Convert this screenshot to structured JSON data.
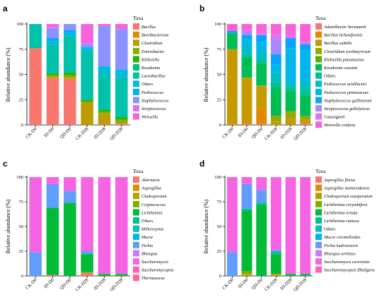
{
  "chart_data": [
    {
      "type": "bar",
      "panel": "a",
      "xlabel": "",
      "ylabel": "Relative abundance (%)",
      "ylim": [
        0,
        100
      ],
      "yticks": [
        0,
        25,
        50,
        75,
        100
      ],
      "categories": [
        "CK-D0",
        "ID-D0",
        "QD-D0",
        "CK-D28",
        "ID-D28",
        "QD-D28"
      ],
      "legend_title": "Taxa",
      "series": [
        {
          "name": "Bacillus",
          "color": "#F8766D",
          "italic": true,
          "values": [
            76,
            46,
            45,
            0,
            0,
            1
          ]
        },
        {
          "name": "Brevibacterium",
          "color": "#E18A00",
          "italic": true,
          "values": [
            0,
            1,
            1,
            0,
            1,
            0
          ]
        },
        {
          "name": "Clostridium",
          "color": "#BE9C00",
          "italic": true,
          "values": [
            0,
            1,
            1,
            22,
            10,
            1
          ]
        },
        {
          "name": "Enterobacter",
          "color": "#8CAB00",
          "italic": true,
          "values": [
            0,
            1,
            2,
            1,
            2,
            3
          ]
        },
        {
          "name": "Klebsiella",
          "color": "#24B700",
          "italic": true,
          "values": [
            0,
            2,
            3,
            2,
            2,
            3
          ]
        },
        {
          "name": "Kosakonia",
          "color": "#00BE70",
          "italic": true,
          "values": [
            0,
            0,
            0,
            0,
            0,
            0
          ]
        },
        {
          "name": "Lactobacillus",
          "color": "#00C1AB",
          "italic": true,
          "values": [
            24,
            29,
            36,
            48,
            35,
            39
          ]
        },
        {
          "name": "Others",
          "color": "#00BBDA",
          "italic": false,
          "values": [
            0,
            3,
            3,
            3,
            8,
            7
          ]
        },
        {
          "name": "Pediococcus",
          "color": "#00ACFC",
          "italic": true,
          "values": [
            0,
            3,
            3,
            1,
            0,
            1
          ]
        },
        {
          "name": "Staphylococcus",
          "color": "#8B93FF",
          "italic": true,
          "values": [
            0,
            10,
            6,
            3,
            40,
            40
          ]
        },
        {
          "name": "Streptococcus",
          "color": "#D575FE",
          "italic": true,
          "values": [
            0,
            1,
            0,
            1,
            0,
            0
          ]
        },
        {
          "name": "Weissella",
          "color": "#F962DD",
          "italic": true,
          "values": [
            0,
            3,
            0,
            19,
            2,
            5
          ]
        }
      ]
    },
    {
      "type": "bar",
      "panel": "b",
      "xlabel": "",
      "ylabel": "Relative abundance (%)",
      "ylim": [
        0,
        100
      ],
      "yticks": [
        0,
        25,
        50,
        75,
        100
      ],
      "categories": [
        "CK-D0",
        "ID-D0",
        "QD-D0",
        "CK-D28",
        "ID-D28",
        "QD-D28"
      ],
      "legend_title": "Taxa",
      "series": [
        {
          "name": "Atlantibacter hermannii",
          "color": "#F8766D",
          "italic": true,
          "values": [
            0,
            1,
            1,
            0,
            0,
            1
          ]
        },
        {
          "name": "Bacillus licheniformis",
          "color": "#E38900",
          "italic": true,
          "values": [
            1,
            1,
            16,
            0,
            0,
            1
          ]
        },
        {
          "name": "Bacillus subtilis",
          "color": "#C49A00",
          "italic": true,
          "values": [
            74,
            44,
            21,
            3,
            7,
            3
          ]
        },
        {
          "name": "Clostridium tyrobutyricum",
          "color": "#99A800",
          "italic": true,
          "values": [
            0,
            1,
            1,
            6,
            6,
            3
          ]
        },
        {
          "name": "Klebsiella pneumoniae",
          "color": "#53B400",
          "italic": true,
          "values": [
            0,
            0,
            0,
            0,
            1,
            1
          ]
        },
        {
          "name": "Kosakonia cowanii",
          "color": "#00BC56",
          "italic": true,
          "values": [
            16,
            20,
            22,
            28,
            20,
            20
          ]
        },
        {
          "name": "Others",
          "color": "#00C094",
          "italic": false,
          "values": [
            0,
            3,
            3,
            5,
            3,
            6
          ]
        },
        {
          "name": "Pediococcus acidilactici",
          "color": "#00BFC4",
          "italic": true,
          "values": [
            0,
            8,
            8,
            10,
            6,
            8
          ]
        },
        {
          "name": "Pediococcus pentosaceus",
          "color": "#00B6EB",
          "italic": true,
          "values": [
            0,
            8,
            10,
            8,
            33,
            31
          ]
        },
        {
          "name": "Staphylococcus gallinarum",
          "color": "#06A4FF",
          "italic": true,
          "values": [
            2,
            3,
            7,
            10,
            10,
            6
          ]
        },
        {
          "name": "Streptococcus gallolyticus",
          "color": "#A58AFF",
          "italic": true,
          "values": [
            0,
            3,
            0,
            15,
            0,
            0
          ]
        },
        {
          "name": "Unassigned",
          "color": "#DF70F8",
          "italic": false,
          "values": [
            0,
            3,
            2,
            5,
            3,
            2
          ]
        },
        {
          "name": "Weissella confusa",
          "color": "#FB61D7",
          "italic": true,
          "values": [
            7,
            5,
            9,
            10,
            11,
            18
          ]
        }
      ]
    },
    {
      "type": "bar",
      "panel": "c",
      "xlabel": "",
      "ylabel": "Relative abundance (%)",
      "ylim": [
        0,
        100
      ],
      "yticks": [
        0,
        25,
        50,
        75,
        100
      ],
      "categories": [
        "CK-D0",
        "ID-D0",
        "QD-D0",
        "CK-D28",
        "ID-D28",
        "QD-D28"
      ],
      "legend_title": "Taxa",
      "series": [
        {
          "name": "Alternaria",
          "color": "#F8766D",
          "italic": true,
          "values": [
            0,
            1,
            0,
            3,
            0,
            0
          ]
        },
        {
          "name": "Aspergillus",
          "color": "#DE8C00",
          "italic": true,
          "values": [
            0,
            0,
            0,
            0,
            0,
            0
          ]
        },
        {
          "name": "Cladosporium",
          "color": "#B79F00",
          "italic": true,
          "values": [
            0,
            0,
            0,
            0,
            0,
            0
          ]
        },
        {
          "name": "Cryptococcus",
          "color": "#7CAE00",
          "italic": true,
          "values": [
            0,
            0,
            0,
            1,
            0,
            0
          ]
        },
        {
          "name": "Lichtheimia",
          "color": "#00BA38",
          "italic": true,
          "values": [
            0,
            68,
            74,
            18,
            2,
            2
          ]
        },
        {
          "name": "Others",
          "color": "#00C08B",
          "italic": false,
          "values": [
            0,
            0,
            0,
            0,
            0,
            0
          ]
        },
        {
          "name": "Millerozyma",
          "color": "#00BFC4",
          "italic": true,
          "values": [
            0,
            0,
            0,
            1,
            0,
            0
          ]
        },
        {
          "name": "Mucor",
          "color": "#00B4F0",
          "italic": true,
          "values": [
            0,
            0,
            0,
            0,
            0,
            0
          ]
        },
        {
          "name": "Pichia",
          "color": "#619CFF",
          "italic": true,
          "values": [
            24,
            24,
            12,
            2,
            0,
            0
          ]
        },
        {
          "name": "Rhizopus",
          "color": "#C77CFF",
          "italic": true,
          "values": [
            0,
            0,
            0,
            0,
            0,
            0
          ]
        },
        {
          "name": "Saccharomyces",
          "color": "#F564E3",
          "italic": true,
          "values": [
            76,
            7,
            14,
            75,
            98,
            98
          ]
        },
        {
          "name": "Saccharomycopsis",
          "color": "#FF64B0",
          "italic": true,
          "values": [
            0,
            0,
            0,
            0,
            0,
            0
          ]
        },
        {
          "name": "Thermoascus",
          "color": "#FF6C91",
          "italic": true,
          "values": [
            0,
            0,
            0,
            0,
            0,
            0
          ]
        }
      ]
    },
    {
      "type": "bar",
      "panel": "d",
      "xlabel": "",
      "ylabel": "Relative abundance (%)",
      "ylim": [
        0,
        100
      ],
      "yticks": [
        0,
        25,
        50,
        75,
        100
      ],
      "categories": [
        "CK-D0",
        "ID-D0",
        "QD-D0",
        "CK-D28",
        "ID-D28",
        "QD-D28"
      ],
      "legend_title": "Taxa",
      "series": [
        {
          "name": "Aspergillus flavus",
          "color": "#F8766D",
          "italic": true,
          "values": [
            0,
            0,
            0,
            0,
            0,
            0
          ]
        },
        {
          "name": "Aspergillus montevidensis",
          "color": "#DE8C00",
          "italic": true,
          "values": [
            0,
            1,
            0,
            1,
            0,
            0
          ]
        },
        {
          "name": "Cladosporium exasperatum",
          "color": "#B79F00",
          "italic": true,
          "values": [
            0,
            1,
            0,
            1,
            0,
            0
          ]
        },
        {
          "name": "Lichtheimia corymbifera",
          "color": "#7CAE00",
          "italic": true,
          "values": [
            0,
            3,
            0,
            0,
            0,
            0
          ]
        },
        {
          "name": "Lichtheimia ornata",
          "color": "#00BA38",
          "italic": true,
          "values": [
            0,
            61,
            72,
            20,
            2,
            2
          ]
        },
        {
          "name": "Lichtheimia ramosa",
          "color": "#00C08B",
          "italic": true,
          "values": [
            0,
            2,
            2,
            2,
            0,
            0
          ]
        },
        {
          "name": "Others",
          "color": "#00BFC4",
          "italic": false,
          "values": [
            0,
            0,
            0,
            1,
            0,
            0
          ]
        },
        {
          "name": "Mucor circinelloides",
          "color": "#00B4F0",
          "italic": true,
          "values": [
            0,
            0,
            0,
            0,
            0,
            0
          ]
        },
        {
          "name": "Pichia kudriavzevii",
          "color": "#619CFF",
          "italic": true,
          "values": [
            24,
            25,
            13,
            1,
            0,
            0
          ]
        },
        {
          "name": "Rhizopus arrhizus",
          "color": "#C77CFF",
          "italic": true,
          "values": [
            0,
            0,
            0,
            0,
            0,
            0
          ]
        },
        {
          "name": "Saccharomyces cerevisiae",
          "color": "#F564E3",
          "italic": true,
          "values": [
            76,
            7,
            13,
            74,
            98,
            98
          ]
        },
        {
          "name": "Saccharomycopsis fibuligera",
          "color": "#FF64B0",
          "italic": true,
          "values": [
            0,
            0,
            0,
            0,
            0,
            0
          ]
        }
      ]
    }
  ]
}
